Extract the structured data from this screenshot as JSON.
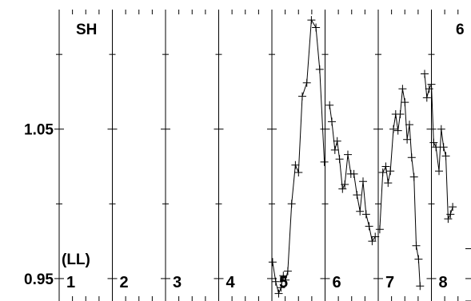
{
  "chart_data": {
    "type": "scatter",
    "title": "",
    "xlabel": "",
    "ylabel": "",
    "ylim": [
      0.935,
      1.13
    ],
    "y_ticks": [
      {
        "value": 1.05,
        "label": "1.05"
      },
      {
        "value": 0.95,
        "label": "0.95"
      }
    ],
    "y_minor_ticks": [
      1.1,
      1.0
    ],
    "corner_label_left": "SH",
    "corner_label_right": "6",
    "sub_label": "(LL)",
    "panels": [
      "1",
      "2",
      "3",
      "4",
      "5",
      "6",
      "7",
      "8"
    ],
    "panel_width_days": 7,
    "grid": false,
    "series": [
      {
        "style": "line+plus-markers",
        "x": [
          28.1,
          28.5,
          28.9,
          29.2,
          29.5,
          29.8,
          30.1,
          30.6,
          31.1,
          31.5,
          32.0,
          32.6,
          33.2,
          33.8,
          34.3,
          34.9
        ],
        "y": [
          0.961,
          0.948,
          0.94,
          0.944,
          0.952,
          0.949,
          0.955,
          1.0,
          1.026,
          1.021,
          1.072,
          1.081,
          1.123,
          1.118,
          1.09,
          1.028
        ]
      },
      {
        "style": "line+plus-markers",
        "x": [
          35.6,
          35.9,
          36.3,
          36.6,
          36.9,
          37.3,
          37.6,
          38.0,
          38.4,
          38.8,
          39.2,
          39.6,
          40.0,
          40.4,
          40.8,
          41.2,
          41.6
        ],
        "y": [
          1.066,
          1.055,
          1.036,
          1.042,
          1.03,
          1.01,
          1.013,
          1.033,
          1.02,
          1.02,
          1.006,
          0.995,
          1.015,
          0.993,
          0.985,
          0.975,
          0.978
        ]
      },
      {
        "style": "line+plus-markers",
        "x": [
          42.2,
          42.6,
          43.0,
          43.3,
          43.6,
          44.0,
          44.3,
          44.6,
          44.9,
          45.2,
          45.5,
          45.8,
          46.1,
          46.4,
          46.7,
          47.0,
          47.3,
          47.5
        ],
        "y": [
          0.983,
          1.021,
          1.025,
          1.014,
          1.022,
          1.05,
          1.06,
          1.049,
          1.06,
          1.077,
          1.068,
          1.043,
          1.053,
          1.031,
          1.018,
          0.972,
          0.963,
          0.945
        ]
      },
      {
        "style": "line+plus-markers",
        "x": [
          48.1,
          48.4,
          48.7,
          49.0,
          49.3,
          49.6,
          50.0,
          50.3,
          50.6,
          50.9,
          51.2,
          51.5,
          51.8
        ],
        "y": [
          1.087,
          1.071,
          1.077,
          1.08,
          1.041,
          1.038,
          1.022,
          1.05,
          1.038,
          1.032,
          0.99,
          0.993,
          0.998
        ]
      }
    ]
  }
}
